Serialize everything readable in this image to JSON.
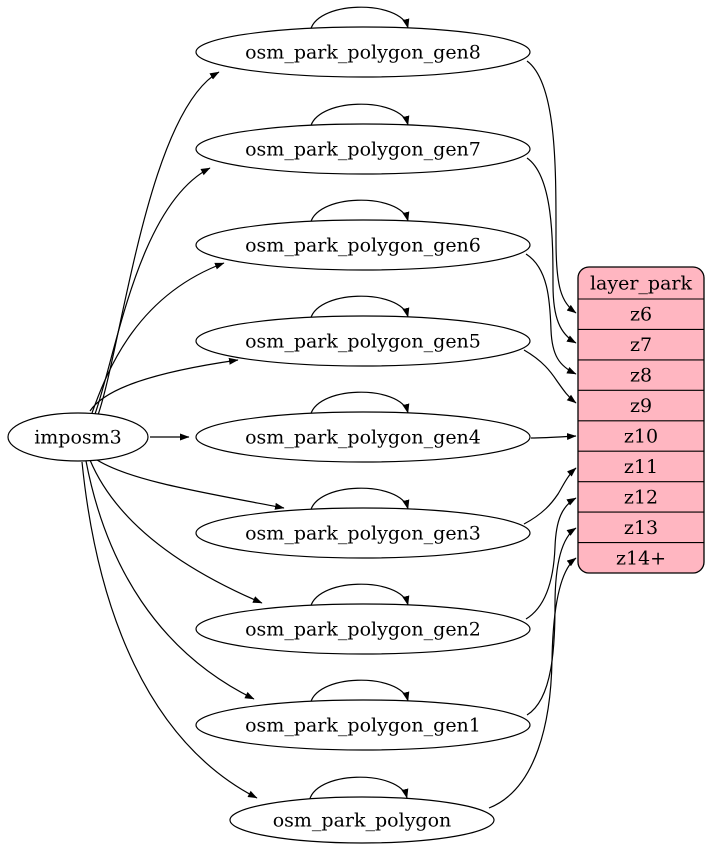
{
  "diagram": {
    "kind": "etl-graph",
    "source": {
      "id": "imposm3",
      "label": "imposm3"
    },
    "tables": [
      {
        "id": "osm_park_polygon_gen8",
        "label": "osm_park_polygon_gen8",
        "zoom_row": "z6"
      },
      {
        "id": "osm_park_polygon_gen7",
        "label": "osm_park_polygon_gen7",
        "zoom_row": "z7"
      },
      {
        "id": "osm_park_polygon_gen6",
        "label": "osm_park_polygon_gen6",
        "zoom_row": "z8"
      },
      {
        "id": "osm_park_polygon_gen5",
        "label": "osm_park_polygon_gen5",
        "zoom_row": "z9"
      },
      {
        "id": "osm_park_polygon_gen4",
        "label": "osm_park_polygon_gen4",
        "zoom_row": "z10"
      },
      {
        "id": "osm_park_polygon_gen3",
        "label": "osm_park_polygon_gen3",
        "zoom_row": "z11"
      },
      {
        "id": "osm_park_polygon_gen2",
        "label": "osm_park_polygon_gen2",
        "zoom_row": "z12"
      },
      {
        "id": "osm_park_polygon_gen1",
        "label": "osm_park_polygon_gen1",
        "zoom_row": "z13"
      },
      {
        "id": "osm_park_polygon",
        "label": "osm_park_polygon",
        "zoom_row": "z14+"
      }
    ],
    "layer_table": {
      "title": "layer_park",
      "rows": [
        "z6",
        "z7",
        "z8",
        "z9",
        "z10",
        "z11",
        "z12",
        "z13",
        "z14+"
      ]
    },
    "edges": {
      "source_to_each_table": true,
      "self_loop_on_each_table": true,
      "each_table_to_zoom_row": true
    },
    "colors": {
      "table_fill": "#ffb6c1",
      "node_fill": "#ffffff",
      "stroke": "#000000",
      "background": "#ffffff"
    }
  }
}
